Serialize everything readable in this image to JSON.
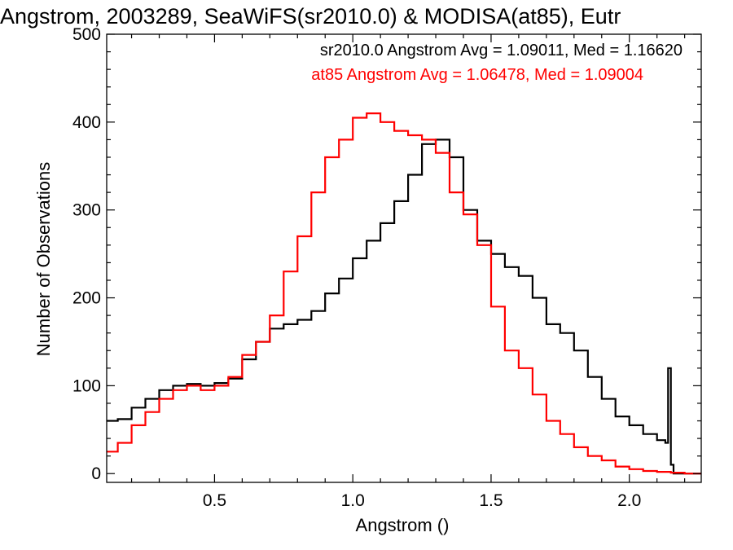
{
  "chart_data": {
    "type": "line",
    "title": "Angstrom, 2003289, SeaWiFS(sr2010.0) & MODISA(at85), Eutr",
    "xlabel": "Angstrom ()",
    "ylabel": "Number of Observations",
    "xlim": [
      0.11,
      2.26
    ],
    "ylim": [
      -10,
      500
    ],
    "x_ticks": [
      0.5,
      1.0,
      1.5,
      2.0
    ],
    "x_tick_labels": [
      "0.5",
      "1.0",
      "1.5",
      "2.0"
    ],
    "y_ticks": [
      0,
      100,
      200,
      300,
      400,
      500
    ],
    "y_tick_labels": [
      "0",
      "100",
      "200",
      "300",
      "400",
      "500"
    ],
    "legend": [
      {
        "text": "sr2010.0 Angstrom Avg = 1.09011, Med = 1.16620",
        "color": "#000000"
      },
      {
        "text": "at85 Angstrom Avg = 1.06478, Med = 1.09004",
        "color": "#ff0000"
      }
    ],
    "series": [
      {
        "name": "sr2010.0",
        "color": "#000000",
        "style": "step",
        "x": [
          0.11,
          0.15,
          0.2,
          0.25,
          0.3,
          0.35,
          0.4,
          0.45,
          0.5,
          0.55,
          0.6,
          0.65,
          0.7,
          0.75,
          0.8,
          0.85,
          0.9,
          0.95,
          1.0,
          1.05,
          1.1,
          1.15,
          1.2,
          1.25,
          1.3,
          1.35,
          1.4,
          1.45,
          1.5,
          1.55,
          1.6,
          1.65,
          1.7,
          1.75,
          1.8,
          1.85,
          1.9,
          1.95,
          2.0,
          2.05,
          2.1,
          2.13,
          2.14,
          2.15,
          2.16,
          2.2,
          2.26
        ],
        "y": [
          60,
          62,
          75,
          85,
          95,
          100,
          102,
          100,
          103,
          108,
          130,
          150,
          165,
          170,
          175,
          185,
          205,
          222,
          245,
          265,
          285,
          310,
          340,
          375,
          380,
          360,
          300,
          265,
          250,
          235,
          225,
          200,
          170,
          160,
          140,
          110,
          85,
          65,
          55,
          45,
          38,
          35,
          120,
          10,
          0,
          0,
          0
        ]
      },
      {
        "name": "at85",
        "color": "#ff0000",
        "style": "step",
        "x": [
          0.11,
          0.15,
          0.2,
          0.25,
          0.3,
          0.35,
          0.4,
          0.45,
          0.5,
          0.55,
          0.6,
          0.65,
          0.7,
          0.75,
          0.8,
          0.85,
          0.9,
          0.95,
          1.0,
          1.05,
          1.1,
          1.15,
          1.2,
          1.25,
          1.3,
          1.35,
          1.4,
          1.45,
          1.5,
          1.55,
          1.6,
          1.65,
          1.7,
          1.75,
          1.8,
          1.85,
          1.9,
          1.95,
          2.0,
          2.05,
          2.1,
          2.15,
          2.2,
          2.26
        ],
        "y": [
          25,
          35,
          55,
          70,
          85,
          95,
          100,
          95,
          100,
          110,
          135,
          150,
          180,
          230,
          270,
          320,
          360,
          380,
          405,
          410,
          400,
          390,
          385,
          380,
          365,
          320,
          295,
          260,
          190,
          140,
          120,
          90,
          60,
          45,
          30,
          20,
          15,
          8,
          5,
          3,
          2,
          1,
          0,
          0
        ]
      }
    ]
  }
}
